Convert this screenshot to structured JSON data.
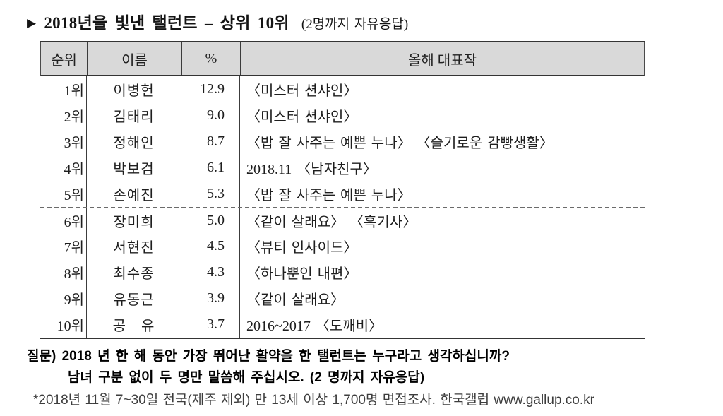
{
  "title": {
    "arrow": "▶",
    "main": "2018년을 빛낸 탤런트 – 상위 10위",
    "suffix": "(2명까지 자유응답)"
  },
  "table": {
    "headers": [
      "순위",
      "이름",
      "%",
      "올해 대표작"
    ],
    "rows": [
      {
        "rank": "1위",
        "name": "이병헌",
        "pct": "12.9",
        "works": "〈미스터 션샤인〉"
      },
      {
        "rank": "2위",
        "name": "김태리",
        "pct": "9.0",
        "works": "〈미스터 션샤인〉"
      },
      {
        "rank": "3위",
        "name": "정해인",
        "pct": "8.7",
        "works": "〈밥 잘 사주는 예쁜 누나〉 〈슬기로운 감빵생활〉"
      },
      {
        "rank": "4위",
        "name": "박보검",
        "pct": "6.1",
        "works": "2018.11 〈남자친구〉"
      },
      {
        "rank": "5위",
        "name": "손예진",
        "pct": "5.3",
        "works": "〈밥 잘 사주는 예쁜 누나〉"
      },
      {
        "rank": "6위",
        "name": "장미희",
        "pct": "5.0",
        "works": "〈같이 살래요〉 〈흑기사〉"
      },
      {
        "rank": "7위",
        "name": "서현진",
        "pct": "4.5",
        "works": "〈뷰티 인사이드〉"
      },
      {
        "rank": "8위",
        "name": "최수종",
        "pct": "4.3",
        "works": "〈하나뿐인 내편〉"
      },
      {
        "rank": "9위",
        "name": "유동근",
        "pct": "3.9",
        "works": "〈같이 살래요〉"
      },
      {
        "rank": "10위",
        "name": "공　유",
        "pct": "3.7",
        "works": "2016~2017 〈도깨비〉"
      }
    ]
  },
  "footer": {
    "question_line1": "질문) 2018 년 한 해 동안 가장 뛰어난 활약을 한 탤런트는 누구라고 생각하십니까?",
    "question_line2": "남녀 구분 없이 두 명만 말씀해 주십시오. (2 명까지 자유응답)",
    "source": "*2018년 11월 7~30일 전국(제주 제외) 만 13세 이상 1,700명 면접조사. 한국갤럽 www.gallup.co.kr"
  },
  "chart_data": {
    "type": "table",
    "title": "2018년을 빛낸 탤런트 – 상위 10위 (2명까지 자유응답)",
    "columns": [
      "순위",
      "이름",
      "%",
      "올해 대표작"
    ],
    "names": [
      "이병헌",
      "김태리",
      "정해인",
      "박보검",
      "손예진",
      "장미희",
      "서현진",
      "최수종",
      "유동근",
      "공 유"
    ],
    "values_pct": [
      12.9,
      9.0,
      8.7,
      6.1,
      5.3,
      5.0,
      4.5,
      4.3,
      3.9,
      3.7
    ],
    "notes": "상위 1~5위와 6~10위 사이에 점선 구분, 출처: 한국갤럽"
  },
  "colors": {
    "header_bg": "#d9d9d9",
    "border": "#343434",
    "text": "#1e1e1e",
    "source_text": "#3d3d3d"
  }
}
